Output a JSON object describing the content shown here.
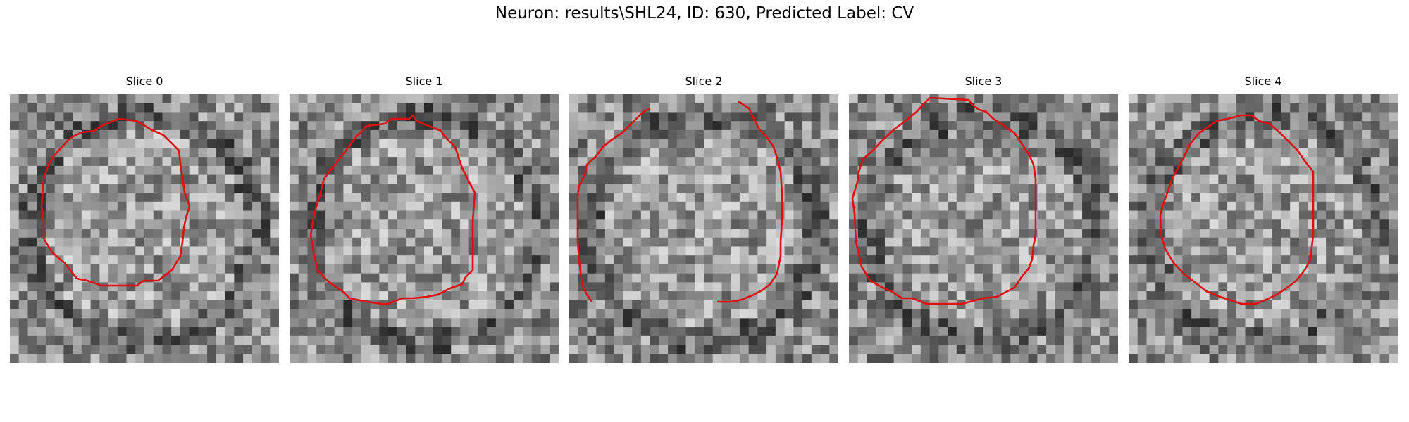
{
  "figure": {
    "title": "Neuron: results\\SHL24, ID: 630, Predicted Label: CV",
    "contour_color": "#e01010",
    "colormap": "gray",
    "panels": [
      {
        "title": "Slice 0"
      },
      {
        "title": "Slice 1"
      },
      {
        "title": "Slice 2"
      },
      {
        "title": "Slice 3"
      },
      {
        "title": "Slice 4"
      }
    ]
  }
}
